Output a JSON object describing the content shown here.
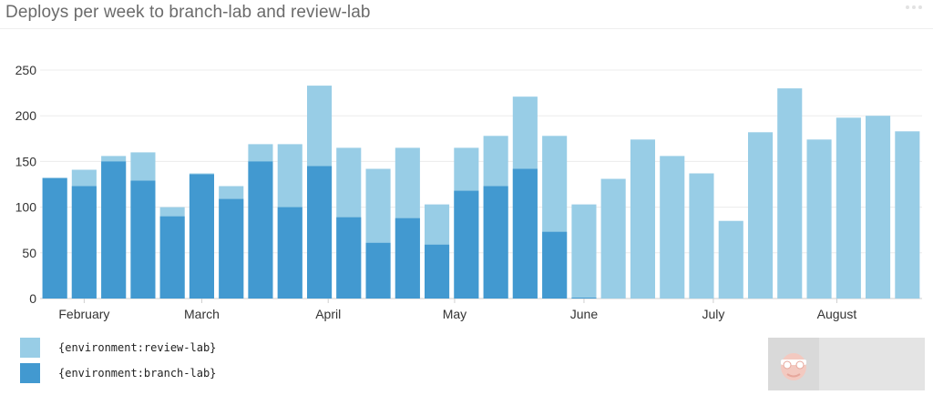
{
  "title": "Deploys per week to branch-lab and review-lab",
  "colors": {
    "review": "#98cde6",
    "branch": "#4299d0",
    "axis": "#cfcfcf",
    "grid": "#ececec",
    "tick_text": "#333333"
  },
  "chart_data": {
    "type": "bar",
    "stacked": "overlay",
    "title": "Deploys per week to branch-lab and review-lab",
    "ylim": [
      0,
      265
    ],
    "y_ticks": [
      0,
      50,
      100,
      150,
      200,
      250
    ],
    "x_month_labels": [
      "February",
      "March",
      "April",
      "May",
      "June",
      "July",
      "August"
    ],
    "x_month_label_weeks": [
      1.5,
      5.5,
      9.8,
      14.1,
      18.5,
      22.9,
      27.1
    ],
    "series": [
      {
        "name": "{environment:review-lab}",
        "color": "#98cde6",
        "values": [
          132,
          141,
          156,
          160,
          100,
          137,
          123,
          169,
          169,
          233,
          165,
          142,
          165,
          103,
          165,
          178,
          221,
          178,
          103,
          131,
          174,
          156,
          137,
          85,
          182,
          230,
          174,
          198,
          200,
          183
        ]
      },
      {
        "name": "{environment:branch-lab}",
        "color": "#4299d0",
        "values": [
          132,
          123,
          150,
          129,
          90,
          136,
          109,
          150,
          100,
          145,
          89,
          61,
          88,
          59,
          118,
          123,
          142,
          73,
          1,
          0,
          0,
          0,
          0,
          0,
          0,
          0,
          0,
          0,
          0,
          0
        ]
      }
    ]
  },
  "legend": {
    "review_label": "{environment:review-lab}",
    "branch_label": "{environment:branch-lab}"
  },
  "menu_icon": "more-dots-icon",
  "logo_icon": "datadog-logo-icon"
}
